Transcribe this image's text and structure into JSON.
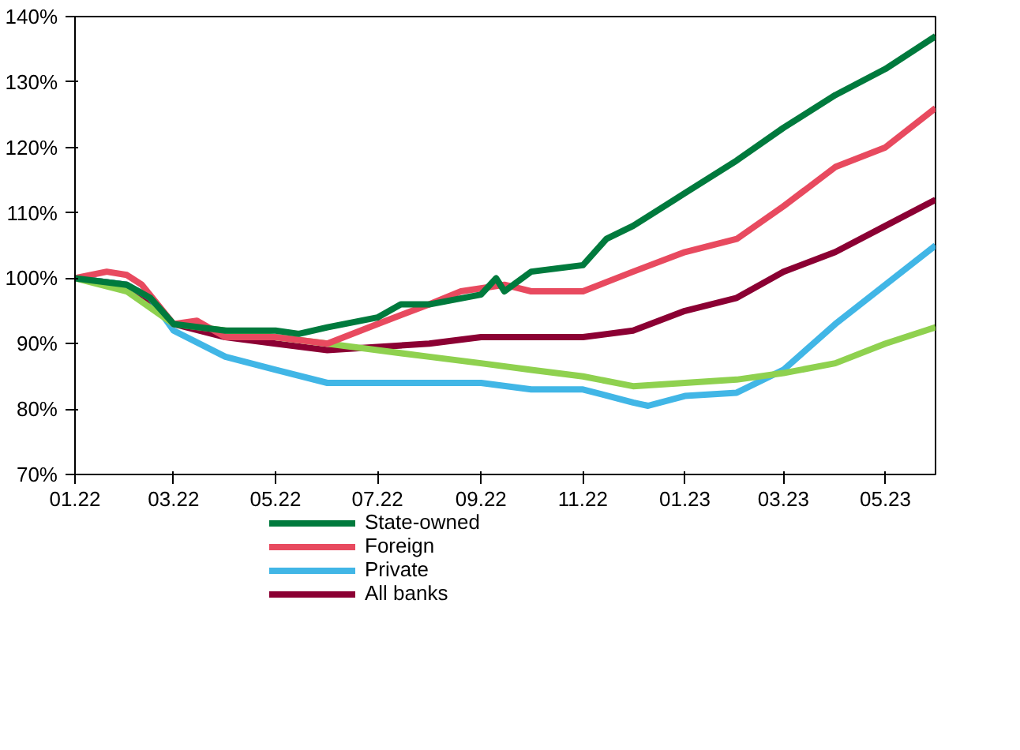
{
  "chart_data": {
    "type": "line",
    "xlim": [
      "2022-01-01",
      "2023-05-31"
    ],
    "ylim": [
      70,
      140
    ],
    "xticks": [
      {
        "value": "2022-01-01",
        "label": "01.22"
      },
      {
        "value": "2022-03-01",
        "label": "03.22"
      },
      {
        "value": "2022-05-01",
        "label": "05.22"
      },
      {
        "value": "2022-07-01",
        "label": "07.22"
      },
      {
        "value": "2022-09-01",
        "label": "09.22"
      },
      {
        "value": "2022-11-01",
        "label": "11.22"
      },
      {
        "value": "2023-01-01",
        "label": "01.23"
      },
      {
        "value": "2023-03-01",
        "label": "03.23"
      },
      {
        "value": "2023-05-01",
        "label": "05.23"
      }
    ],
    "yticks": [
      {
        "value": 70,
        "label": "70%"
      },
      {
        "value": 80,
        "label": "80%"
      },
      {
        "value": 90,
        "label": "90%"
      },
      {
        "value": 100,
        "label": "100%"
      },
      {
        "value": 110,
        "label": "110%"
      },
      {
        "value": 120,
        "label": "120%"
      },
      {
        "value": 130,
        "label": "130%"
      },
      {
        "value": 140,
        "label": "140%"
      }
    ],
    "grid": false,
    "legend": "bottom",
    "marker": "none",
    "line_style": "solid",
    "x": [
      "2022-01-01",
      "2022-02-01",
      "2022-02-15",
      "2022-03-01",
      "2022-04-01",
      "2022-05-01",
      "2022-05-15",
      "2022-06-01",
      "2022-07-01",
      "2022-07-15",
      "2022-08-01",
      "2022-09-01",
      "2022-09-10",
      "2022-09-15",
      "2022-10-01",
      "2022-11-01",
      "2022-11-15",
      "2022-12-01",
      "2023-01-01",
      "2023-02-01",
      "2023-03-01",
      "2023-04-01",
      "2023-05-01",
      "2023-05-31"
    ],
    "series": [
      {
        "name": "State-owned",
        "color": "#007a3d",
        "values": [
          100,
          99,
          97,
          93,
          92,
          92,
          91.5,
          92.5,
          94,
          96,
          96,
          97.5,
          100,
          98,
          101,
          102,
          106,
          108,
          113,
          118,
          123,
          128,
          132,
          137
        ]
      },
      {
        "name": "Foreign",
        "color": "#e84a5f",
        "x": [
          "2022-01-01",
          "2022-01-20",
          "2022-02-01",
          "2022-02-10",
          "2022-03-01",
          "2022-03-15",
          "2022-04-01",
          "2022-05-01",
          "2022-06-01",
          "2022-07-01",
          "2022-08-01",
          "2022-08-20",
          "2022-09-15",
          "2022-10-01",
          "2022-11-01",
          "2022-12-01",
          "2023-01-01",
          "2023-02-01",
          "2023-03-01",
          "2023-04-01",
          "2023-05-01",
          "2023-05-31"
        ],
        "values": [
          100,
          101,
          100.5,
          99,
          93,
          93.5,
          91,
          91,
          90,
          93,
          96,
          98,
          99,
          98,
          98,
          101,
          104,
          106,
          111,
          117,
          120,
          126
        ]
      },
      {
        "color": "#8fd14f",
        "x": [
          "2022-01-01",
          "2022-02-01",
          "2022-03-01",
          "2022-04-01",
          "2022-05-01",
          "2022-06-01",
          "2022-07-01",
          "2022-08-01",
          "2022-09-01",
          "2022-10-01",
          "2022-11-01",
          "2022-12-01",
          "2023-01-01",
          "2023-02-01",
          "2023-03-01",
          "2023-04-01",
          "2023-05-01",
          "2023-05-31"
        ],
        "values": [
          100,
          98,
          93,
          92,
          91,
          90,
          89,
          88,
          87,
          86,
          85,
          83.5,
          84,
          84.5,
          85.5,
          87,
          90,
          92.5
        ]
      },
      {
        "name": "Private",
        "color": "#41b6e6",
        "x": [
          "2022-01-01",
          "2022-02-01",
          "2022-02-15",
          "2022-03-01",
          "2022-04-01",
          "2022-05-01",
          "2022-06-01",
          "2022-07-01",
          "2022-08-01",
          "2022-09-01",
          "2022-10-01",
          "2022-11-01",
          "2022-12-01",
          "2022-12-10",
          "2023-01-01",
          "2023-02-01",
          "2023-03-01",
          "2023-04-01",
          "2023-05-01",
          "2023-05-31"
        ],
        "values": [
          100,
          99,
          97,
          92,
          88,
          86,
          84,
          84,
          84,
          84,
          83,
          83,
          81,
          80.5,
          82,
          82.5,
          86,
          93,
          99,
          105
        ]
      },
      {
        "name": "All banks",
        "color": "#8b0033",
        "x": [
          "2022-01-01",
          "2022-02-01",
          "2022-03-01",
          "2022-04-01",
          "2022-05-01",
          "2022-06-01",
          "2022-07-01",
          "2022-08-01",
          "2022-09-01",
          "2022-10-01",
          "2022-11-01",
          "2022-12-01",
          "2023-01-01",
          "2023-02-01",
          "2023-03-01",
          "2023-04-01",
          "2023-05-01",
          "2023-05-31"
        ],
        "values": [
          100,
          99,
          93,
          91,
          90,
          89,
          89.5,
          90,
          91,
          91,
          91,
          92,
          95,
          97,
          101,
          104,
          108,
          112
        ]
      }
    ]
  }
}
